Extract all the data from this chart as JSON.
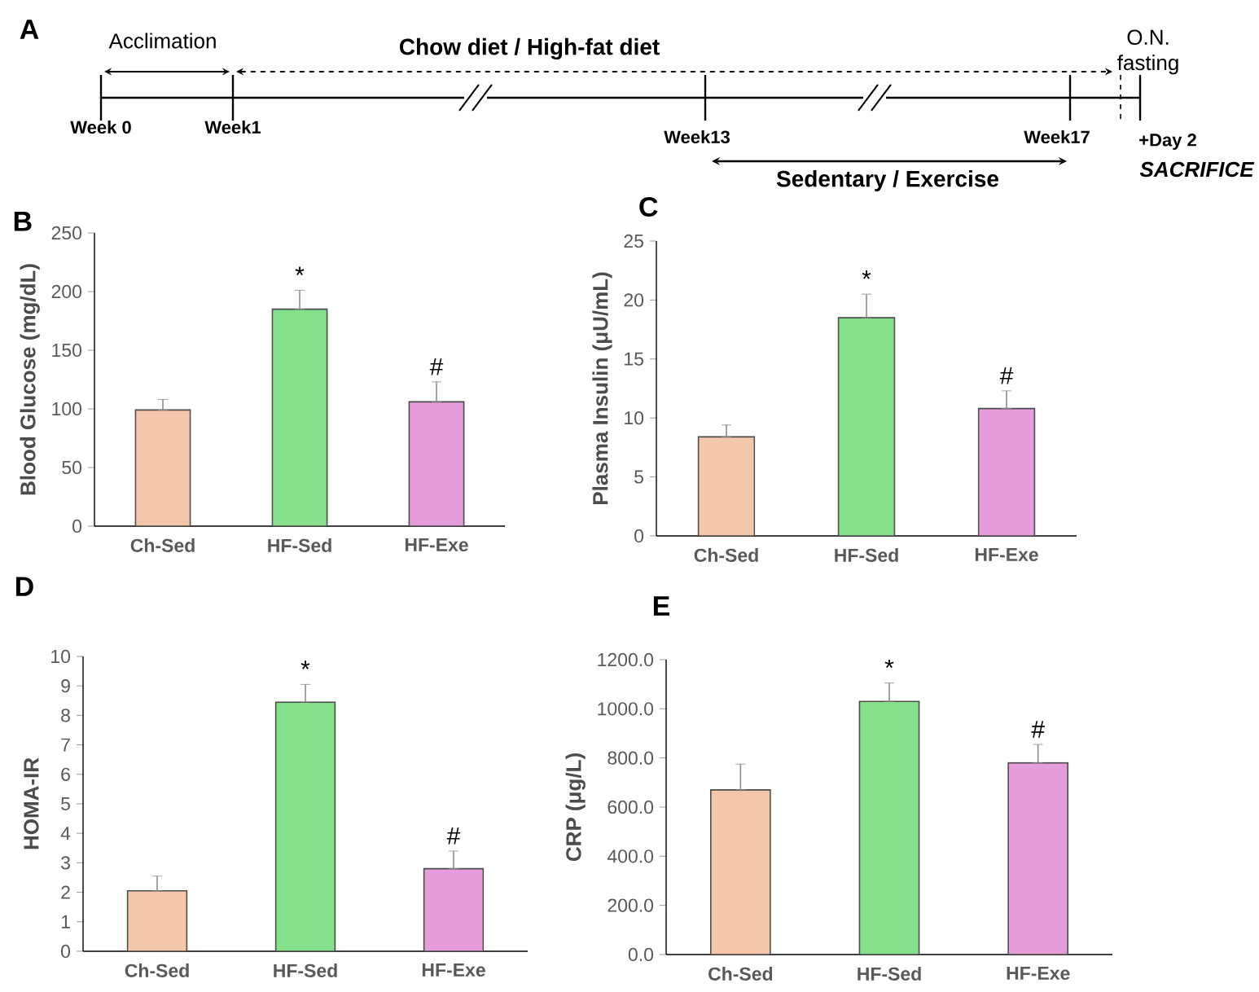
{
  "chart_data": [
    {
      "type": "other",
      "title": "A",
      "annotations": [
        "Acclimation",
        "Chow diet / High-fat diet",
        "O.N. fasting",
        "Week 0",
        "Week1",
        "Week13",
        "Week17",
        "+Day 2",
        "SACRIFICE",
        "Sedentary / Exercise"
      ]
    },
    {
      "type": "bar",
      "title": "B",
      "ylabel": "Blood Glucose (mg/dL)",
      "categories": [
        "Ch-Sed",
        "HF-Sed",
        "HF-Exe"
      ],
      "values": [
        99,
        185,
        106
      ],
      "errors": [
        [
          99,
          108
        ],
        [
          185,
          201
        ],
        [
          106,
          123
        ]
      ],
      "colors": [
        "#f4c7ab",
        "#85e08c",
        "#e59edb"
      ],
      "ylim": [
        0,
        250
      ],
      "yticks": [
        0,
        50,
        100,
        150,
        200,
        250
      ],
      "annotations": [
        "*",
        "#"
      ]
    },
    {
      "type": "bar",
      "title": "C",
      "ylabel": "Plasma Insulin (μU/mL)",
      "categories": [
        "Ch-Sed",
        "HF-Sed",
        "HF-Exe"
      ],
      "values": [
        8.4,
        18.5,
        10.8
      ],
      "errors": [
        [
          8.4,
          9.4
        ],
        [
          18.5,
          20.5
        ],
        [
          10.8,
          12.3
        ]
      ],
      "colors": [
        "#f4c7ab",
        "#85e08c",
        "#e59edb"
      ],
      "ylim": [
        0,
        25
      ],
      "yticks": [
        0,
        5,
        10,
        15,
        20,
        25
      ],
      "annotations": [
        "*",
        "#"
      ]
    },
    {
      "type": "bar",
      "title": "D",
      "ylabel": "HOMA-IR",
      "categories": [
        "Ch-Sed",
        "HF-Sed",
        "HF-Exe"
      ],
      "values": [
        2.05,
        8.45,
        2.8
      ],
      "errors": [
        [
          2.05,
          2.55
        ],
        [
          8.45,
          9.05
        ],
        [
          2.8,
          3.4
        ]
      ],
      "colors": [
        "#f4c7ab",
        "#85e08c",
        "#e59edb"
      ],
      "ylim": [
        0,
        10
      ],
      "yticks": [
        0,
        1,
        2,
        3,
        4,
        5,
        6,
        7,
        8,
        9,
        10
      ],
      "annotations": [
        "*",
        "#"
      ]
    },
    {
      "type": "bar",
      "title": "E",
      "ylabel": "CRP (μg/L)",
      "categories": [
        "Ch-Sed",
        "HF-Sed",
        "HF-Exe"
      ],
      "values": [
        670,
        1030,
        780
      ],
      "errors": [
        [
          670,
          775
        ],
        [
          1030,
          1105
        ],
        [
          780,
          855
        ]
      ],
      "colors": [
        "#f4c7ab",
        "#85e08c",
        "#e59edb"
      ],
      "ylim": [
        0,
        1200
      ],
      "yticks": [
        {
          "value": 0,
          "label": "0.0"
        },
        {
          "value": 200,
          "label": "200.0"
        },
        {
          "value": 400,
          "label": "400.0"
        },
        {
          "value": 600,
          "label": "600.0"
        },
        {
          "value": 800,
          "label": "800.0"
        },
        {
          "value": 1000,
          "label": "1000.0"
        },
        {
          "value": 1200,
          "label": "1200.0"
        }
      ],
      "annotations": [
        "*",
        "#"
      ]
    }
  ]
}
